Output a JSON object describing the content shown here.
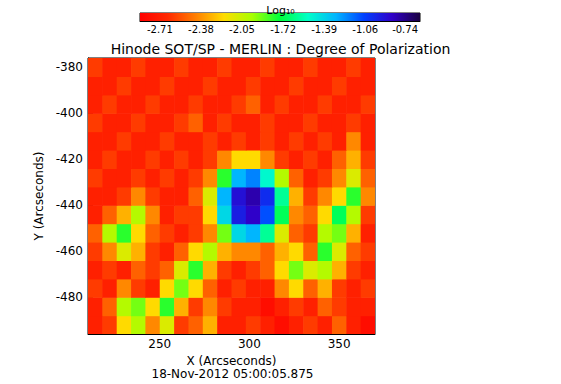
{
  "chart_data": {
    "type": "heatmap",
    "title": "Hinode SOT/SP - MERLIN : Degree of Polarization",
    "x_label": "X (Arcseconds)",
    "y_label": "Y (Arcseconds)",
    "annotation": "18-Nov-2012 05:00:05.875",
    "xlim": [
      210,
      370
    ],
    "xticks": [
      250,
      300,
      350
    ],
    "ylim": [
      -496,
      -376
    ],
    "yticks": [
      -480,
      -460,
      -440,
      -420,
      -400,
      -380
    ],
    "x": [
      214,
      222,
      230,
      238,
      246,
      254,
      262,
      270,
      278,
      286,
      294,
      302,
      310,
      318,
      326,
      334,
      342,
      350,
      358,
      366
    ],
    "y": [
      -492,
      -484,
      -476,
      -468,
      -460,
      -452,
      -444,
      -436,
      -428,
      -420,
      -412,
      -404,
      -396,
      -388,
      -380
    ],
    "z": [
      [
        -2.7,
        -2.6,
        -2.2,
        -2.0,
        -2.4,
        -2.1,
        -2.6,
        -2.5,
        -2.3,
        -2.7,
        -2.7,
        -2.6,
        -2.7,
        -2.8,
        -2.7,
        -2.6,
        -2.7,
        -2.5,
        -2.7,
        -2.8
      ],
      [
        -2.7,
        -2.5,
        -2.0,
        -1.9,
        -2.2,
        -1.8,
        -2.3,
        -2.6,
        -2.4,
        -2.6,
        -2.7,
        -2.7,
        -2.8,
        -2.7,
        -2.6,
        -2.7,
        -2.5,
        -2.6,
        -2.7,
        -2.7
      ],
      [
        -2.6,
        -2.7,
        -2.4,
        -2.6,
        -2.7,
        -2.2,
        -1.9,
        -2.2,
        -2.5,
        -2.7,
        -2.6,
        -2.7,
        -2.7,
        -2.4,
        -2.2,
        -2.5,
        -2.3,
        -2.6,
        -2.7,
        -2.6
      ],
      [
        -2.7,
        -2.6,
        -2.7,
        -2.5,
        -2.6,
        -2.5,
        -2.1,
        -1.8,
        -2.3,
        -2.6,
        -2.7,
        -2.6,
        -2.5,
        -2.2,
        -1.9,
        -2.1,
        -2.0,
        -2.3,
        -2.6,
        -2.7
      ],
      [
        -2.6,
        -2.4,
        -2.1,
        -2.3,
        -2.6,
        -2.7,
        -2.5,
        -2.2,
        -2.0,
        -2.3,
        -2.4,
        -2.4,
        -2.5,
        -2.3,
        -2.2,
        -2.5,
        -1.8,
        -2.1,
        -2.5,
        -2.6
      ],
      [
        -2.5,
        -2.0,
        -1.8,
        -2.2,
        -2.5,
        -2.6,
        -2.7,
        -2.6,
        -2.4,
        -1.9,
        -1.4,
        -1.3,
        -1.6,
        -2.1,
        -2.5,
        -2.6,
        -2.0,
        -1.9,
        -2.3,
        -2.7
      ],
      [
        -2.7,
        -2.5,
        -2.3,
        -2.0,
        -2.4,
        -2.7,
        -2.6,
        -2.6,
        -2.2,
        -1.4,
        -0.95,
        -0.85,
        -1.1,
        -1.7,
        -2.4,
        -2.5,
        -2.2,
        -1.7,
        -2.0,
        -2.6
      ],
      [
        -2.7,
        -2.7,
        -2.6,
        -2.4,
        -2.6,
        -2.7,
        -2.7,
        -2.5,
        -2.1,
        -1.3,
        -0.9,
        -0.8,
        -1.0,
        -1.6,
        -2.3,
        -2.6,
        -2.4,
        -2.2,
        -1.8,
        -2.4
      ],
      [
        -2.6,
        -2.7,
        -2.7,
        -2.6,
        -2.7,
        -2.6,
        -2.7,
        -2.6,
        -2.4,
        -1.8,
        -1.3,
        -1.2,
        -1.5,
        -2.0,
        -2.5,
        -2.7,
        -2.6,
        -2.4,
        -2.1,
        -2.5
      ],
      [
        -2.7,
        -2.6,
        -2.7,
        -2.7,
        -2.6,
        -2.7,
        -2.6,
        -2.7,
        -2.6,
        -2.4,
        -2.2,
        -2.2,
        -2.4,
        -2.6,
        -2.7,
        -2.6,
        -2.7,
        -2.5,
        -2.3,
        -2.6
      ],
      [
        -2.7,
        -2.7,
        -2.6,
        -2.7,
        -2.7,
        -2.6,
        -2.7,
        -2.7,
        -2.6,
        -2.7,
        -2.6,
        -2.7,
        -2.6,
        -2.7,
        -2.6,
        -2.7,
        -2.6,
        -2.7,
        -2.4,
        -2.7
      ],
      [
        -2.6,
        -2.7,
        -2.7,
        -2.6,
        -2.7,
        -2.7,
        -2.6,
        -2.5,
        -2.7,
        -2.6,
        -2.7,
        -2.7,
        -2.6,
        -2.7,
        -2.7,
        -2.6,
        -2.7,
        -2.7,
        -2.6,
        -2.7
      ],
      [
        -2.7,
        -2.6,
        -2.7,
        -2.7,
        -2.6,
        -2.7,
        -2.7,
        -2.6,
        -2.7,
        -2.7,
        -2.6,
        -2.5,
        -2.7,
        -2.6,
        -2.7,
        -2.7,
        -2.6,
        -2.7,
        -2.7,
        -2.6
      ],
      [
        -2.7,
        -2.7,
        -2.6,
        -2.7,
        -2.7,
        -2.6,
        -2.7,
        -2.7,
        -2.6,
        -2.7,
        -2.7,
        -2.6,
        -2.7,
        -2.7,
        -2.6,
        -2.7,
        -2.7,
        -2.6,
        -2.7,
        -2.7
      ],
      [
        -2.6,
        -2.7,
        -2.7,
        -2.6,
        -2.7,
        -2.7,
        -2.6,
        -2.7,
        -2.7,
        -2.6,
        -2.7,
        -2.7,
        -2.6,
        -2.7,
        -2.7,
        -2.6,
        -2.7,
        -2.7,
        -2.6,
        -2.7
      ]
    ],
    "colorbar": {
      "label": "Log₁₀",
      "range": [
        -2.87,
        -0.62
      ],
      "ticks": [
        -2.71,
        -2.38,
        -2.05,
        -1.72,
        -1.39,
        -1.06,
        -0.74
      ]
    }
  }
}
